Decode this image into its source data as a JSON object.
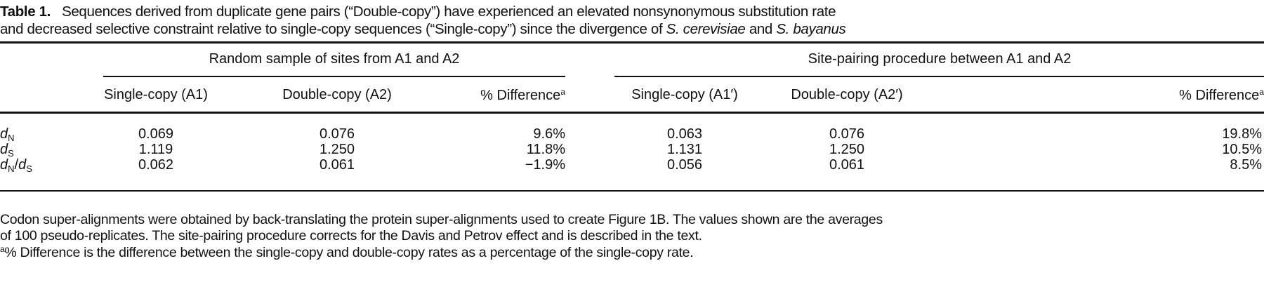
{
  "caption": {
    "label": "Table 1.",
    "line1": "Sequences derived from duplicate gene pairs (“Double-copy”) have experienced an elevated nonsynonymous substitution rate",
    "line2_pre": "and decreased selective constraint relative to single-copy sequences (“Single-copy”) since the divergence of ",
    "species1": "S. cerevisiae",
    "and": " and ",
    "species2": "S. bayanus"
  },
  "groups": [
    {
      "label": "Random sample of sites from A1 and A2"
    },
    {
      "label": "Site-pairing procedure between A1 and A2"
    }
  ],
  "columns": [
    "Single-copy (A1)",
    "Double-copy (A2)",
    "% Difference",
    "Single-copy (A1′)",
    "Double-copy (A2′)",
    "% Difference"
  ],
  "footnote_marker": "a",
  "rows": [
    {
      "label": "d",
      "sub": "N",
      "values": [
        "0.069",
        "0.076",
        "9.6%",
        "0.063",
        "0.076",
        "19.8%"
      ]
    },
    {
      "label": "d",
      "sub": "S",
      "values": [
        "1.119",
        "1.250",
        "11.8%",
        "1.131",
        "1.250",
        "10.5%"
      ]
    },
    {
      "label": "d",
      "sub": "N",
      "slash": "/",
      "label2": "d",
      "sub2": "S",
      "values": [
        "0.062",
        "0.061",
        "−1.9%",
        "0.056",
        "0.061",
        "8.5%"
      ]
    }
  ],
  "notes": {
    "line1": "Codon super-alignments were obtained by back-translating the protein super-alignments used to create Figure 1B. The values shown are the averages",
    "line2": "of 100 pseudo-replicates. The site-pairing procedure corrects for the Davis and Petrov effect and is described in the text.",
    "footnote_marker": "a",
    "footnote": "% Difference is the difference between the single-copy and double-copy rates as a percentage of the single-copy rate."
  }
}
